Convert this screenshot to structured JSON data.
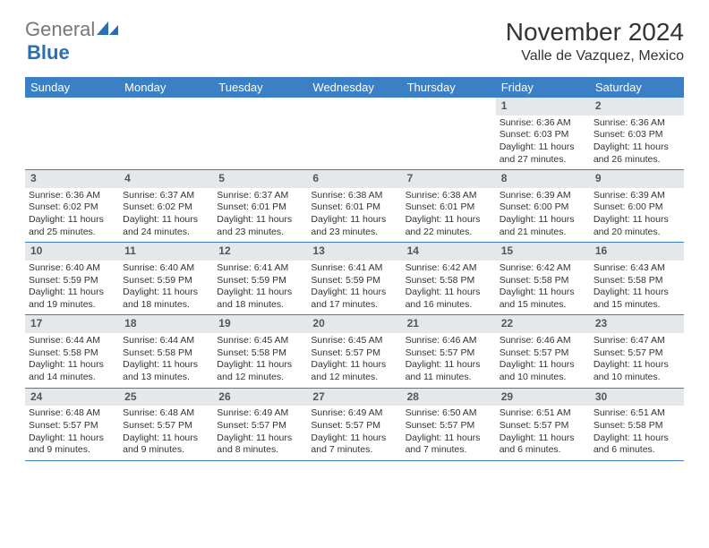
{
  "brand": {
    "general": "General",
    "blue": "Blue"
  },
  "title": "November 2024",
  "location": "Valle de Vazquez, Mexico",
  "colors": {
    "header_bg": "#3b7fc4",
    "header_text": "#ffffff",
    "daynum_bg": "#e5e8ea",
    "rule": "#3b7fc4",
    "logo_blue": "#2a6fb5",
    "logo_grey": "#777777"
  },
  "day_names": [
    "Sunday",
    "Monday",
    "Tuesday",
    "Wednesday",
    "Thursday",
    "Friday",
    "Saturday"
  ],
  "weeks": [
    [
      {
        "n": "",
        "l1": "",
        "l2": "",
        "l3": "",
        "l4": ""
      },
      {
        "n": "",
        "l1": "",
        "l2": "",
        "l3": "",
        "l4": ""
      },
      {
        "n": "",
        "l1": "",
        "l2": "",
        "l3": "",
        "l4": ""
      },
      {
        "n": "",
        "l1": "",
        "l2": "",
        "l3": "",
        "l4": ""
      },
      {
        "n": "",
        "l1": "",
        "l2": "",
        "l3": "",
        "l4": ""
      },
      {
        "n": "1",
        "l1": "Sunrise: 6:36 AM",
        "l2": "Sunset: 6:03 PM",
        "l3": "Daylight: 11 hours",
        "l4": "and 27 minutes."
      },
      {
        "n": "2",
        "l1": "Sunrise: 6:36 AM",
        "l2": "Sunset: 6:03 PM",
        "l3": "Daylight: 11 hours",
        "l4": "and 26 minutes."
      }
    ],
    [
      {
        "n": "3",
        "l1": "Sunrise: 6:36 AM",
        "l2": "Sunset: 6:02 PM",
        "l3": "Daylight: 11 hours",
        "l4": "and 25 minutes."
      },
      {
        "n": "4",
        "l1": "Sunrise: 6:37 AM",
        "l2": "Sunset: 6:02 PM",
        "l3": "Daylight: 11 hours",
        "l4": "and 24 minutes."
      },
      {
        "n": "5",
        "l1": "Sunrise: 6:37 AM",
        "l2": "Sunset: 6:01 PM",
        "l3": "Daylight: 11 hours",
        "l4": "and 23 minutes."
      },
      {
        "n": "6",
        "l1": "Sunrise: 6:38 AM",
        "l2": "Sunset: 6:01 PM",
        "l3": "Daylight: 11 hours",
        "l4": "and 23 minutes."
      },
      {
        "n": "7",
        "l1": "Sunrise: 6:38 AM",
        "l2": "Sunset: 6:01 PM",
        "l3": "Daylight: 11 hours",
        "l4": "and 22 minutes."
      },
      {
        "n": "8",
        "l1": "Sunrise: 6:39 AM",
        "l2": "Sunset: 6:00 PM",
        "l3": "Daylight: 11 hours",
        "l4": "and 21 minutes."
      },
      {
        "n": "9",
        "l1": "Sunrise: 6:39 AM",
        "l2": "Sunset: 6:00 PM",
        "l3": "Daylight: 11 hours",
        "l4": "and 20 minutes."
      }
    ],
    [
      {
        "n": "10",
        "l1": "Sunrise: 6:40 AM",
        "l2": "Sunset: 5:59 PM",
        "l3": "Daylight: 11 hours",
        "l4": "and 19 minutes."
      },
      {
        "n": "11",
        "l1": "Sunrise: 6:40 AM",
        "l2": "Sunset: 5:59 PM",
        "l3": "Daylight: 11 hours",
        "l4": "and 18 minutes."
      },
      {
        "n": "12",
        "l1": "Sunrise: 6:41 AM",
        "l2": "Sunset: 5:59 PM",
        "l3": "Daylight: 11 hours",
        "l4": "and 18 minutes."
      },
      {
        "n": "13",
        "l1": "Sunrise: 6:41 AM",
        "l2": "Sunset: 5:59 PM",
        "l3": "Daylight: 11 hours",
        "l4": "and 17 minutes."
      },
      {
        "n": "14",
        "l1": "Sunrise: 6:42 AM",
        "l2": "Sunset: 5:58 PM",
        "l3": "Daylight: 11 hours",
        "l4": "and 16 minutes."
      },
      {
        "n": "15",
        "l1": "Sunrise: 6:42 AM",
        "l2": "Sunset: 5:58 PM",
        "l3": "Daylight: 11 hours",
        "l4": "and 15 minutes."
      },
      {
        "n": "16",
        "l1": "Sunrise: 6:43 AM",
        "l2": "Sunset: 5:58 PM",
        "l3": "Daylight: 11 hours",
        "l4": "and 15 minutes."
      }
    ],
    [
      {
        "n": "17",
        "l1": "Sunrise: 6:44 AM",
        "l2": "Sunset: 5:58 PM",
        "l3": "Daylight: 11 hours",
        "l4": "and 14 minutes."
      },
      {
        "n": "18",
        "l1": "Sunrise: 6:44 AM",
        "l2": "Sunset: 5:58 PM",
        "l3": "Daylight: 11 hours",
        "l4": "and 13 minutes."
      },
      {
        "n": "19",
        "l1": "Sunrise: 6:45 AM",
        "l2": "Sunset: 5:58 PM",
        "l3": "Daylight: 11 hours",
        "l4": "and 12 minutes."
      },
      {
        "n": "20",
        "l1": "Sunrise: 6:45 AM",
        "l2": "Sunset: 5:57 PM",
        "l3": "Daylight: 11 hours",
        "l4": "and 12 minutes."
      },
      {
        "n": "21",
        "l1": "Sunrise: 6:46 AM",
        "l2": "Sunset: 5:57 PM",
        "l3": "Daylight: 11 hours",
        "l4": "and 11 minutes."
      },
      {
        "n": "22",
        "l1": "Sunrise: 6:46 AM",
        "l2": "Sunset: 5:57 PM",
        "l3": "Daylight: 11 hours",
        "l4": "and 10 minutes."
      },
      {
        "n": "23",
        "l1": "Sunrise: 6:47 AM",
        "l2": "Sunset: 5:57 PM",
        "l3": "Daylight: 11 hours",
        "l4": "and 10 minutes."
      }
    ],
    [
      {
        "n": "24",
        "l1": "Sunrise: 6:48 AM",
        "l2": "Sunset: 5:57 PM",
        "l3": "Daylight: 11 hours",
        "l4": "and 9 minutes."
      },
      {
        "n": "25",
        "l1": "Sunrise: 6:48 AM",
        "l2": "Sunset: 5:57 PM",
        "l3": "Daylight: 11 hours",
        "l4": "and 9 minutes."
      },
      {
        "n": "26",
        "l1": "Sunrise: 6:49 AM",
        "l2": "Sunset: 5:57 PM",
        "l3": "Daylight: 11 hours",
        "l4": "and 8 minutes."
      },
      {
        "n": "27",
        "l1": "Sunrise: 6:49 AM",
        "l2": "Sunset: 5:57 PM",
        "l3": "Daylight: 11 hours",
        "l4": "and 7 minutes."
      },
      {
        "n": "28",
        "l1": "Sunrise: 6:50 AM",
        "l2": "Sunset: 5:57 PM",
        "l3": "Daylight: 11 hours",
        "l4": "and 7 minutes."
      },
      {
        "n": "29",
        "l1": "Sunrise: 6:51 AM",
        "l2": "Sunset: 5:57 PM",
        "l3": "Daylight: 11 hours",
        "l4": "and 6 minutes."
      },
      {
        "n": "30",
        "l1": "Sunrise: 6:51 AM",
        "l2": "Sunset: 5:58 PM",
        "l3": "Daylight: 11 hours",
        "l4": "and 6 minutes."
      }
    ]
  ]
}
